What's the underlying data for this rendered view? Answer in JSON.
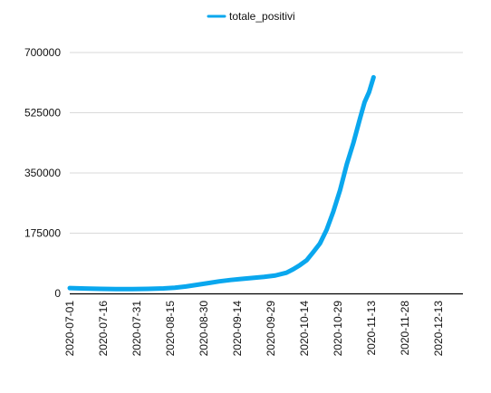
{
  "chart_data": {
    "type": "line",
    "title": "",
    "xlabel": "",
    "ylabel": "",
    "legend_position": "top-center",
    "grid": true,
    "ylim": [
      0,
      700000
    ],
    "yticks": [
      0,
      175000,
      350000,
      525000,
      700000
    ],
    "ytick_labels": [
      "0",
      "175000",
      "350000",
      "525000",
      "700000"
    ],
    "x_axis": {
      "start": "2020-07-01",
      "end": "2020-12-24",
      "tick_labels": [
        "2020-07-01",
        "2020-07-16",
        "2020-07-31",
        "2020-08-15",
        "2020-08-30",
        "2020-09-14",
        "2020-09-29",
        "2020-10-14",
        "2020-10-29",
        "2020-11-13",
        "2020-11-28",
        "2020-12-13"
      ]
    },
    "series": [
      {
        "name": "totale_positivi",
        "color": "#0aa7ee",
        "points": [
          [
            "2020-07-01",
            15500
          ],
          [
            "2020-07-08",
            14000
          ],
          [
            "2020-07-15",
            13000
          ],
          [
            "2020-07-22",
            12500
          ],
          [
            "2020-07-29",
            12500
          ],
          [
            "2020-08-05",
            13000
          ],
          [
            "2020-08-12",
            14500
          ],
          [
            "2020-08-17",
            16500
          ],
          [
            "2020-08-22",
            20000
          ],
          [
            "2020-08-27",
            25000
          ],
          [
            "2020-09-01",
            30000
          ],
          [
            "2020-09-06",
            35000
          ],
          [
            "2020-09-11",
            39000
          ],
          [
            "2020-09-16",
            42000
          ],
          [
            "2020-09-21",
            45000
          ],
          [
            "2020-09-26",
            48000
          ],
          [
            "2020-10-01",
            52000
          ],
          [
            "2020-10-06",
            60000
          ],
          [
            "2020-10-09",
            70000
          ],
          [
            "2020-10-12",
            82000
          ],
          [
            "2020-10-15",
            96000
          ],
          [
            "2020-10-18",
            120000
          ],
          [
            "2020-10-21",
            145000
          ],
          [
            "2020-10-24",
            185000
          ],
          [
            "2020-10-27",
            238000
          ],
          [
            "2020-10-30",
            300000
          ],
          [
            "2020-11-02",
            375000
          ],
          [
            "2020-11-05",
            438000
          ],
          [
            "2020-11-08",
            510000
          ],
          [
            "2020-11-10",
            556000
          ],
          [
            "2020-11-12",
            585000
          ],
          [
            "2020-11-14",
            628000
          ]
        ]
      }
    ]
  }
}
